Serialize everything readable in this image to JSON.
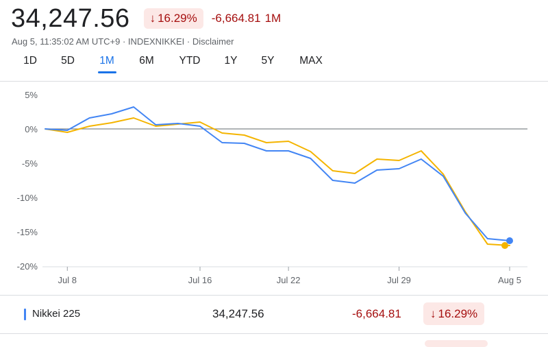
{
  "header": {
    "price": "34,247.56",
    "change_percent": "16.29%",
    "change_value": "-6,664.81",
    "change_period": "1M",
    "meta": "Aug 5, 11:35:02 AM UTC+9 · INDEXNIKKEI · Disclaimer"
  },
  "tabs": [
    {
      "label": "1D"
    },
    {
      "label": "5D"
    },
    {
      "label": "1M",
      "active": true
    },
    {
      "label": "6M"
    },
    {
      "label": "YTD"
    },
    {
      "label": "1Y"
    },
    {
      "label": "5Y"
    },
    {
      "label": "MAX"
    }
  ],
  "colors": {
    "nikkei": "#4285f4",
    "comparison": "#f4b400",
    "negative": "#a50e0e",
    "negative_bg": "#fce8e6",
    "accent": "#1a73e8"
  },
  "chart_data": {
    "type": "line",
    "x": [
      "Jul 5",
      "Jul 8",
      "Jul 9",
      "Jul 10",
      "Jul 11",
      "Jul 12",
      "Jul 15",
      "Jul 16",
      "Jul 17",
      "Jul 18",
      "Jul 19",
      "Jul 22",
      "Jul 23",
      "Jul 24",
      "Jul 25",
      "Jul 26",
      "Jul 29",
      "Jul 30",
      "Jul 31",
      "Aug 1",
      "Aug 2",
      "Aug 5"
    ],
    "x_ticks": [
      "Jul 8",
      "Jul 16",
      "Jul 22",
      "Jul 29",
      "Aug 5"
    ],
    "y_ticks": [
      5,
      0,
      -5,
      -10,
      -15,
      -20
    ],
    "y_tick_labels": [
      "5%",
      "0%",
      "-5%",
      "-10%",
      "-15%",
      "-20%"
    ],
    "ylim": [
      -20,
      5
    ],
    "grid": false,
    "series": [
      {
        "name": "Nikkei 225",
        "color": "#4285f4",
        "values": [
          0,
          -0.2,
          1.6,
          2.2,
          3.2,
          0.6,
          0.8,
          0.4,
          -2.0,
          -2.1,
          -3.2,
          -3.2,
          -4.3,
          -7.5,
          -7.9,
          -6.0,
          -5.8,
          -4.4,
          -6.9,
          -12.3,
          -16.0,
          -16.3
        ]
      },
      {
        "color": "#f4b400",
        "values": [
          0,
          -0.5,
          0.4,
          0.9,
          1.6,
          0.4,
          0.7,
          1.0,
          -0.6,
          -0.9,
          -2.0,
          -1.8,
          -3.3,
          -6.1,
          -6.5,
          -4.4,
          -4.6,
          -3.2,
          -6.6,
          -12.1,
          -16.8,
          -17.0
        ]
      }
    ]
  },
  "legend": {
    "name": "Nikkei 225",
    "value": "34,247.56",
    "change": "-6,664.81",
    "change_percent": "16.29%"
  }
}
